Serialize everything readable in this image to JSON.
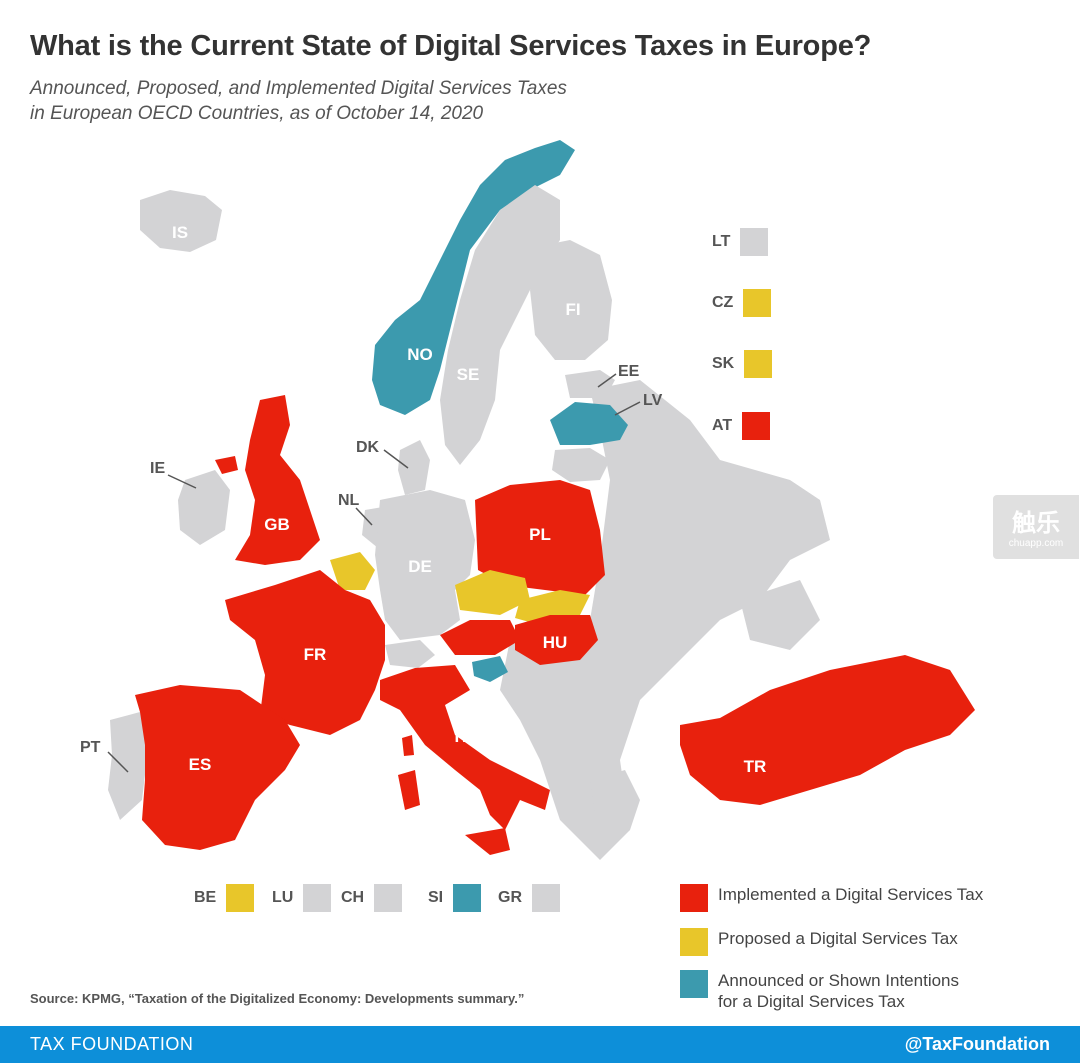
{
  "title": "What is the Current State of Digital Services Taxes in Europe?",
  "subtitle_line1": "Announced, Proposed, and Implemented Digital Services Taxes",
  "subtitle_line2": "in European OECD Countries, as of October 14, 2020",
  "colors": {
    "implemented": "#e8210d",
    "proposed": "#e8c62a",
    "announced": "#3c9aae",
    "none": "#d3d3d5",
    "footer": "#0d8fd9"
  },
  "countries": [
    {
      "code": "IS",
      "status": "none"
    },
    {
      "code": "NO",
      "status": "announced"
    },
    {
      "code": "SE",
      "status": "none"
    },
    {
      "code": "FI",
      "status": "none"
    },
    {
      "code": "EE",
      "status": "none"
    },
    {
      "code": "LV",
      "status": "announced"
    },
    {
      "code": "DK",
      "status": "none"
    },
    {
      "code": "IE",
      "status": "none"
    },
    {
      "code": "GB",
      "status": "implemented"
    },
    {
      "code": "NL",
      "status": "none"
    },
    {
      "code": "DE",
      "status": "none"
    },
    {
      "code": "PL",
      "status": "implemented"
    },
    {
      "code": "FR",
      "status": "implemented"
    },
    {
      "code": "HU",
      "status": "implemented"
    },
    {
      "code": "IT",
      "status": "implemented"
    },
    {
      "code": "PT",
      "status": "none"
    },
    {
      "code": "ES",
      "status": "implemented"
    },
    {
      "code": "TR",
      "status": "implemented"
    }
  ],
  "small_states_right": [
    {
      "code": "LT",
      "status": "none"
    },
    {
      "code": "CZ",
      "status": "proposed"
    },
    {
      "code": "SK",
      "status": "proposed"
    },
    {
      "code": "AT",
      "status": "implemented"
    }
  ],
  "small_states_bottom": [
    {
      "code": "BE",
      "status": "proposed"
    },
    {
      "code": "LU",
      "status": "none"
    },
    {
      "code": "CH",
      "status": "none"
    },
    {
      "code": "SI",
      "status": "announced"
    },
    {
      "code": "GR",
      "status": "none"
    }
  ],
  "legend": {
    "implemented": "Implemented a Digital Services Tax",
    "proposed": "Proposed a Digital Services Tax",
    "announced_line1": "Announced or Shown Intentions",
    "announced_line2": "for a Digital Services Tax"
  },
  "source": "Source: KPMG, “Taxation of the Digitalized Economy: Developments summary.”",
  "footer": {
    "brand": "TAX FOUNDATION",
    "handle": "@TaxFoundation"
  },
  "watermark": {
    "main": "触乐",
    "sub": "chuapp.com"
  }
}
